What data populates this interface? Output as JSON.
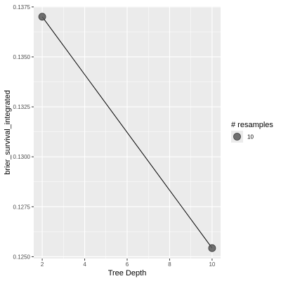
{
  "chart_data": {
    "type": "line",
    "x": [
      2,
      10
    ],
    "y": [
      0.13701,
      0.12543
    ],
    "xlabel": "Tree Depth",
    "ylabel": "brier_survival_integrated",
    "xlim": [
      1.6,
      10.4
    ],
    "ylim": [
      0.12491,
      0.13753
    ],
    "x_ticks": [
      2,
      4,
      6,
      8,
      10
    ],
    "y_ticks": [
      0.125,
      0.1275,
      0.13,
      0.1325,
      0.135,
      0.1375
    ],
    "x_tick_labels": [
      "2",
      "4",
      "6",
      "8",
      "10"
    ],
    "y_tick_labels": [
      "0.1250",
      "0.1275",
      "0.1300",
      "0.1325",
      "0.1350",
      "0.1375"
    ],
    "grid": true,
    "legend": {
      "title": "# resamples",
      "entries": [
        "10"
      ],
      "placement": "right"
    },
    "colors": {
      "panel": "#ebebeb",
      "grid": "#ffffff",
      "point": "#595959",
      "line": "#000000"
    }
  }
}
